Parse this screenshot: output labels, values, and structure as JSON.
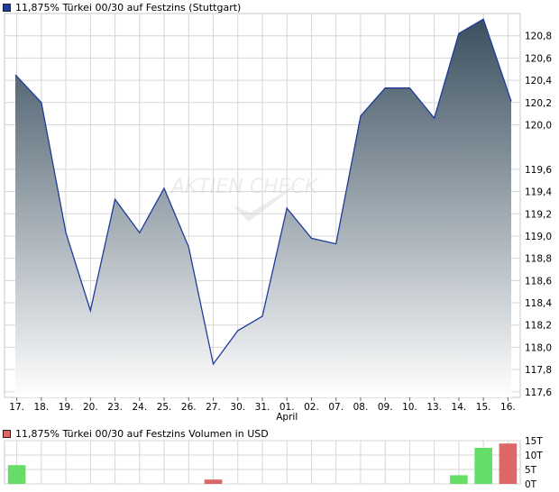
{
  "chart_data": [
    {
      "type": "area",
      "legend": "11,875% Türkei 00/30 auf Festzins (Stuttgart)",
      "categories": [
        "17.",
        "18.",
        "19.",
        "20.",
        "23.",
        "24.",
        "25.",
        "26.",
        "27.",
        "30.",
        "31.",
        "01.",
        "02.",
        "07.",
        "08.",
        "09.",
        "10.",
        "13.",
        "14.",
        "15.",
        "16."
      ],
      "month_label": "April",
      "month_label_index": 11,
      "series": [
        {
          "values": [
            120.45,
            120.2,
            119.03,
            118.33,
            119.33,
            119.03,
            119.43,
            118.9,
            117.85,
            118.15,
            118.28,
            119.25,
            118.98,
            118.93,
            120.08,
            120.33,
            120.33,
            120.06,
            120.82,
            120.95,
            120.21
          ]
        }
      ],
      "ylim": [
        117.55,
        121.0
      ],
      "yticks": [
        "120,8",
        "120,6",
        "120,4",
        "120,2",
        "120,0",
        "119,6",
        "119,4",
        "119,2",
        "119,0",
        "118,8",
        "118,6",
        "118,4",
        "118,2",
        "118,0",
        "117,8",
        "117,6"
      ],
      "ytick_values": [
        120.8,
        120.6,
        120.4,
        120.2,
        120.0,
        119.6,
        119.4,
        119.2,
        119.0,
        118.8,
        118.6,
        118.4,
        118.2,
        118.0,
        117.8,
        117.6
      ],
      "grid": true,
      "colors": {
        "line": "#1f3c9a",
        "fill_top": "#3a4f5f",
        "fill_bottom": "#ffffff",
        "legend_swatch": "#1f3c9a",
        "grid": "#d6d6d6"
      },
      "watermark": "AKTIEN CHECK"
    },
    {
      "type": "bar",
      "legend": "11,875% Türkei 00/30 auf Festzins Volumen in USD",
      "values": [
        6.5,
        0,
        0,
        0,
        0,
        0,
        0,
        0,
        1.5,
        0,
        0,
        0,
        0,
        0,
        0,
        0,
        0,
        0,
        3,
        12.5,
        14
      ],
      "bar_colors": [
        "#66dd66",
        "",
        "",
        "",
        "",
        "",
        "",
        "",
        "#dd6666",
        "",
        "",
        "",
        "",
        "",
        "",
        "",
        "",
        "",
        "#66dd66",
        "#66dd66",
        "#dd6666"
      ],
      "ylim": [
        0,
        15
      ],
      "yticks": [
        "15T",
        "10T",
        "5T",
        "0T"
      ],
      "ytick_values": [
        15,
        10,
        5,
        0
      ],
      "grid": true,
      "colors": {
        "legend_swatch": "#dd6666",
        "grid": "#d6d6d6"
      }
    }
  ]
}
